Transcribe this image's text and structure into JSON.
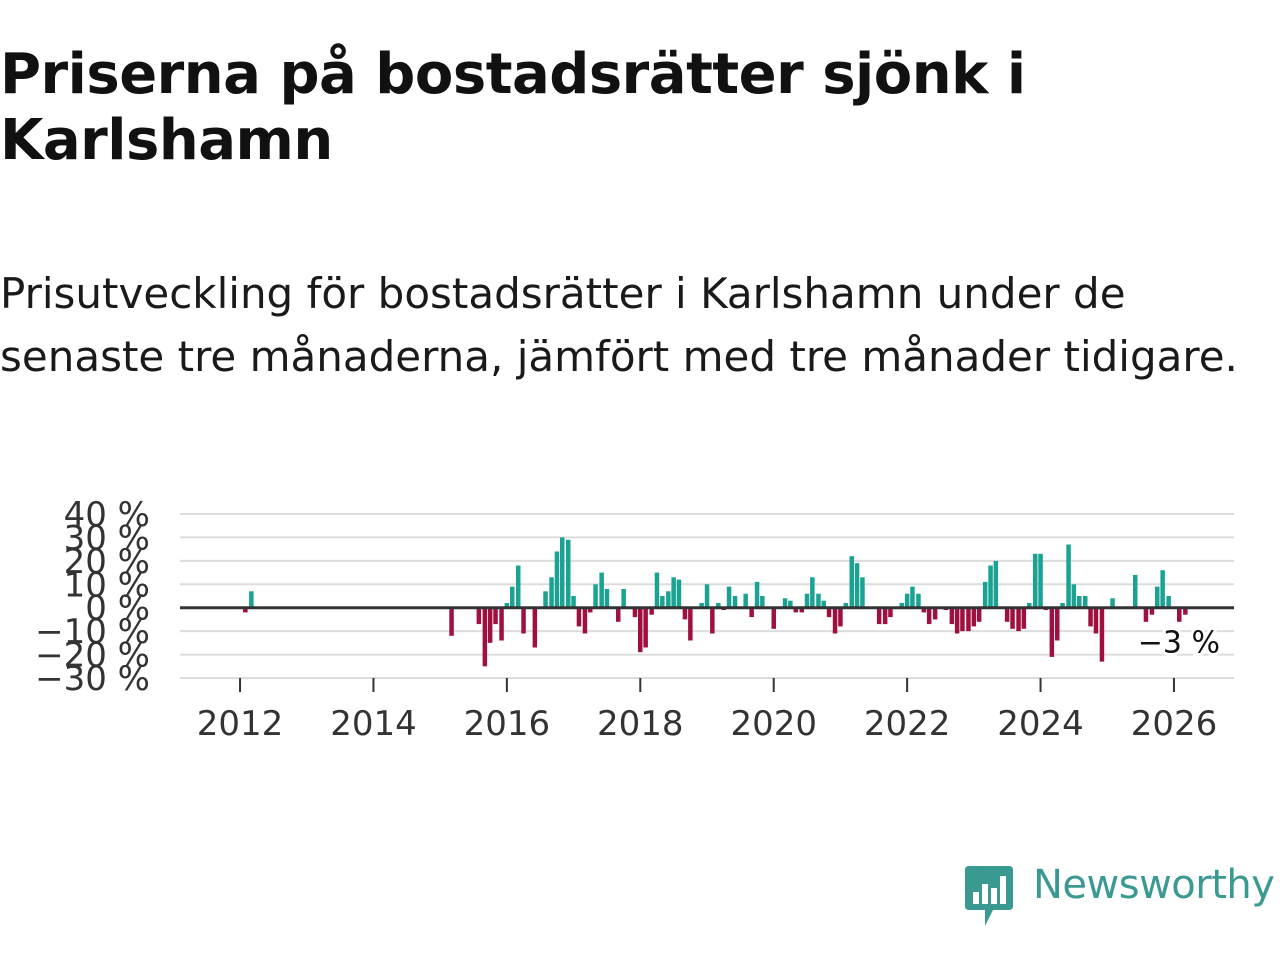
{
  "title": "Priserna på bostadsrätter sjönk i Karlshamn",
  "subtitle": "Prisutveckling för bostadsrätter i Karlshamn under de senaste tre månaderna, jämfört med tre månader tidigare.",
  "brand": {
    "name": "Newsworthy",
    "color": "#3a9a92"
  },
  "colors": {
    "positive": "#1aa293",
    "negative": "#a0103f",
    "zero_line": "#333333",
    "grid": "#dcdcdc"
  },
  "chart_data": {
    "type": "bar",
    "title": "Priserna på bostadsrätter sjönk i Karlshamn",
    "ylabel": "",
    "xlabel": "",
    "ylim": [
      -30,
      40
    ],
    "xlim": [
      2011.1,
      2026.9
    ],
    "grid": true,
    "y_ticks": [
      40,
      30,
      20,
      10,
      0,
      -10,
      -20,
      -30
    ],
    "y_tick_labels": [
      "40 %",
      "30 %",
      "20 %",
      "10 %",
      "0 %",
      "−10 %",
      "−20 %",
      "−30 %"
    ],
    "x_ticks": [
      2012,
      2014,
      2016,
      2018,
      2020,
      2022,
      2024,
      2026
    ],
    "x_tick_labels": [
      "2012",
      "2014",
      "2016",
      "2018",
      "2020",
      "2022",
      "2024",
      "2026"
    ],
    "last_value_label": "−3 %",
    "series": [
      {
        "name": "Prisutveckling",
        "points": [
          [
            2012.08,
            -2
          ],
          [
            2012.17,
            7
          ],
          [
            2015.17,
            -12
          ],
          [
            2015.58,
            -7
          ],
          [
            2015.67,
            -25
          ],
          [
            2015.75,
            -15
          ],
          [
            2015.83,
            -7
          ],
          [
            2015.92,
            -14
          ],
          [
            2016.0,
            2
          ],
          [
            2016.08,
            9
          ],
          [
            2016.17,
            18
          ],
          [
            2016.25,
            -11
          ],
          [
            2016.42,
            -17
          ],
          [
            2016.58,
            7
          ],
          [
            2016.67,
            13
          ],
          [
            2016.75,
            24
          ],
          [
            2016.83,
            30
          ],
          [
            2016.92,
            29
          ],
          [
            2017.0,
            5
          ],
          [
            2017.08,
            -8
          ],
          [
            2017.17,
            -11
          ],
          [
            2017.25,
            -2
          ],
          [
            2017.33,
            10
          ],
          [
            2017.42,
            15
          ],
          [
            2017.5,
            8
          ],
          [
            2017.67,
            -6
          ],
          [
            2017.75,
            8
          ],
          [
            2017.92,
            -4
          ],
          [
            2018.0,
            -19
          ],
          [
            2018.08,
            -17
          ],
          [
            2018.17,
            -3
          ],
          [
            2018.25,
            15
          ],
          [
            2018.33,
            5
          ],
          [
            2018.42,
            7
          ],
          [
            2018.5,
            13
          ],
          [
            2018.58,
            12
          ],
          [
            2018.67,
            -5
          ],
          [
            2018.75,
            -14
          ],
          [
            2018.92,
            2
          ],
          [
            2019.0,
            10
          ],
          [
            2019.08,
            -11
          ],
          [
            2019.17,
            2
          ],
          [
            2019.25,
            -1
          ],
          [
            2019.33,
            9
          ],
          [
            2019.42,
            5
          ],
          [
            2019.58,
            6
          ],
          [
            2019.67,
            -4
          ],
          [
            2019.75,
            11
          ],
          [
            2019.83,
            5
          ],
          [
            2020.0,
            -9
          ],
          [
            2020.17,
            4
          ],
          [
            2020.25,
            3
          ],
          [
            2020.33,
            -2
          ],
          [
            2020.42,
            -2
          ],
          [
            2020.5,
            6
          ],
          [
            2020.58,
            13
          ],
          [
            2020.67,
            6
          ],
          [
            2020.75,
            3
          ],
          [
            2020.83,
            -4
          ],
          [
            2020.92,
            -11
          ],
          [
            2021.0,
            -8
          ],
          [
            2021.08,
            2
          ],
          [
            2021.17,
            22
          ],
          [
            2021.25,
            19
          ],
          [
            2021.33,
            13
          ],
          [
            2021.58,
            -7
          ],
          [
            2021.67,
            -7
          ],
          [
            2021.75,
            -4
          ],
          [
            2021.92,
            2
          ],
          [
            2022.0,
            6
          ],
          [
            2022.08,
            9
          ],
          [
            2022.17,
            6
          ],
          [
            2022.25,
            -2
          ],
          [
            2022.33,
            -7
          ],
          [
            2022.42,
            -5
          ],
          [
            2022.58,
            -1
          ],
          [
            2022.67,
            -7
          ],
          [
            2022.75,
            -11
          ],
          [
            2022.83,
            -10
          ],
          [
            2022.92,
            -10
          ],
          [
            2023.0,
            -8
          ],
          [
            2023.08,
            -6
          ],
          [
            2023.17,
            11
          ],
          [
            2023.25,
            18
          ],
          [
            2023.33,
            20
          ],
          [
            2023.5,
            -6
          ],
          [
            2023.58,
            -9
          ],
          [
            2023.67,
            -10
          ],
          [
            2023.75,
            -9
          ],
          [
            2023.83,
            2
          ],
          [
            2023.92,
            23
          ],
          [
            2024.0,
            23
          ],
          [
            2024.08,
            -1
          ],
          [
            2024.17,
            -21
          ],
          [
            2024.25,
            -14
          ],
          [
            2024.33,
            2
          ],
          [
            2024.42,
            27
          ],
          [
            2024.5,
            10
          ],
          [
            2024.58,
            5
          ],
          [
            2024.67,
            5
          ],
          [
            2024.75,
            -8
          ],
          [
            2024.83,
            -11
          ],
          [
            2024.92,
            -23
          ],
          [
            2025.08,
            4
          ],
          [
            2025.42,
            14
          ],
          [
            2025.58,
            -6
          ],
          [
            2025.67,
            -3
          ],
          [
            2025.75,
            9
          ],
          [
            2025.83,
            16
          ],
          [
            2025.92,
            5
          ],
          [
            2026.08,
            -6
          ],
          [
            2026.17,
            -3
          ]
        ]
      }
    ]
  }
}
